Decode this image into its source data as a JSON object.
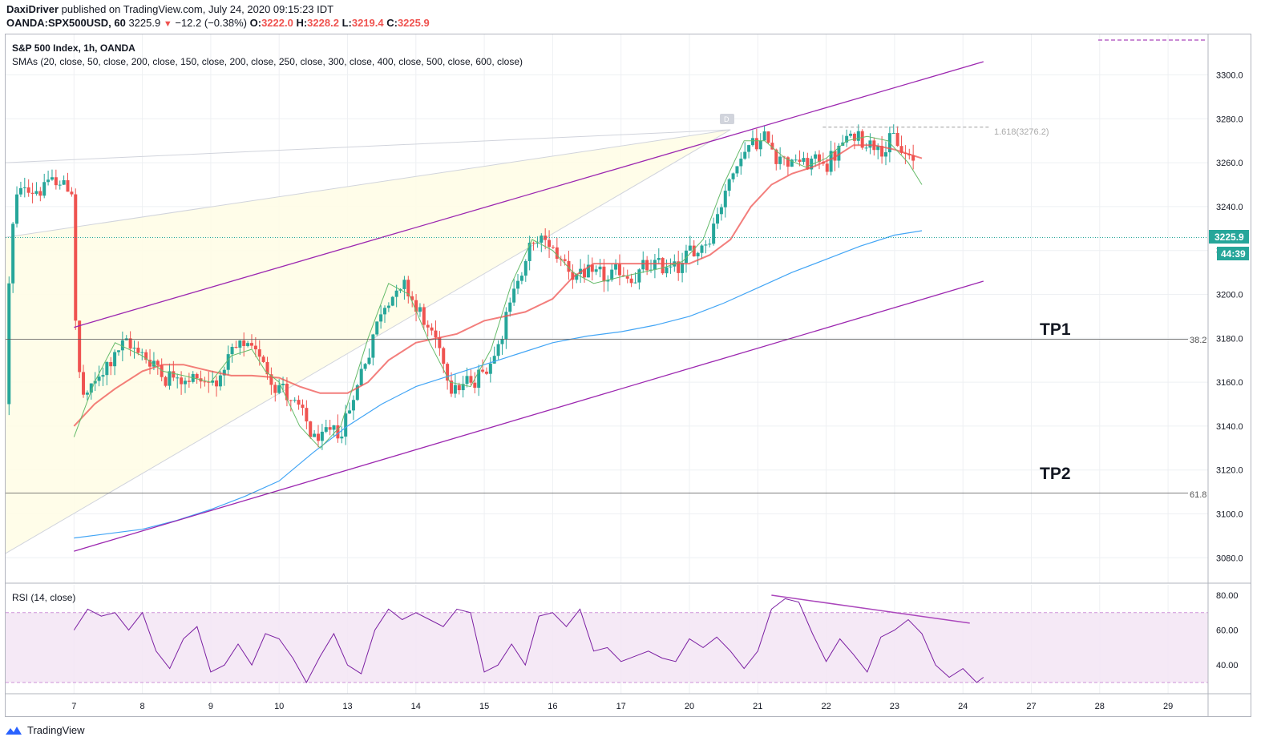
{
  "header": {
    "publisher": "DaxiDriver published on TradingView.com, July 24, 2020 09:15:23 IDT",
    "symbol": "OANDA:SPX500USD, 60",
    "last": "3225.9",
    "change_arrow": "▼",
    "change": "−12.2 (−0.38%)",
    "o_label": "O:",
    "o": "3222.0",
    "h_label": "H:",
    "h": "3228.2",
    "l_label": "L:",
    "l": "3219.4",
    "c_label": "C:",
    "c": "3225.9"
  },
  "legend": {
    "title": "S&P 500 Index, 1h, OANDA",
    "smas": "SMAs (20, close, 50, close, 200, close, 150, close, 200, close, 250, close, 300, close, 400, close, 500, close, 600, close)"
  },
  "rsi_legend": "RSI (14, close)",
  "footer": {
    "brand": "TradingView"
  },
  "colors": {
    "up": "#26a69a",
    "down": "#ef5350",
    "sma20": "#66bb6a",
    "sma50": "#ef5350",
    "sma200": "#42a5f5",
    "channel": "#9c27b0",
    "rsi": "#7b1fa2"
  },
  "chart_data": {
    "type": "candlestick",
    "ylim": [
      3070,
      3320
    ],
    "y_ticks": [
      "3300.0",
      "3280.0",
      "3260.0",
      "3240.0",
      "3220.0",
      "3200.0",
      "3180.0",
      "3160.0",
      "3140.0",
      "3120.0",
      "3100.0",
      "3080.0"
    ],
    "x_ticks": [
      "7",
      "8",
      "9",
      "10",
      "13",
      "14",
      "15",
      "16",
      "17",
      "20",
      "21",
      "22",
      "23",
      "24",
      "27",
      "28",
      "29"
    ],
    "price_label": "3225.9",
    "countdown_label": "44:39",
    "annotations": {
      "tp1": "TP1",
      "tp2": "TP2",
      "fib382": "38.2",
      "fib618": "61.8",
      "fib1618": "1.618(3276.2)",
      "point_d": "D"
    },
    "fib_levels": {
      "fib382": 3179.6,
      "fib618": 3109.5,
      "fib1618": 3276.2,
      "last": 3225.9
    },
    "channel": {
      "upper": [
        [
          0,
          3185
        ],
        [
          13.3,
          3306
        ]
      ],
      "lower": [
        [
          0,
          3083
        ],
        [
          13.3,
          3206
        ]
      ]
    },
    "sma20": [
      [
        0,
        3135
      ],
      [
        0.3,
        3160
      ],
      [
        0.6,
        3178
      ],
      [
        1,
        3172
      ],
      [
        1.3,
        3165
      ],
      [
        1.6,
        3163
      ],
      [
        2,
        3160
      ],
      [
        2.3,
        3172
      ],
      [
        2.6,
        3175
      ],
      [
        2.8,
        3165
      ],
      [
        3,
        3160
      ],
      [
        3.3,
        3140
      ],
      [
        3.6,
        3130
      ],
      [
        3.9,
        3140
      ],
      [
        4.3,
        3180
      ],
      [
        4.6,
        3205
      ],
      [
        4.9,
        3200
      ],
      [
        5.2,
        3178
      ],
      [
        5.5,
        3160
      ],
      [
        5.8,
        3158
      ],
      [
        6.1,
        3175
      ],
      [
        6.4,
        3205
      ],
      [
        6.7,
        3225
      ],
      [
        7,
        3220
      ],
      [
        7.3,
        3210
      ],
      [
        7.6,
        3205
      ],
      [
        8,
        3208
      ],
      [
        8.3,
        3210
      ],
      [
        8.6,
        3212
      ],
      [
        8.9,
        3215
      ],
      [
        9.2,
        3225
      ],
      [
        9.5,
        3250
      ],
      [
        9.8,
        3270
      ],
      [
        10.1,
        3270
      ],
      [
        10.4,
        3262
      ],
      [
        10.7,
        3258
      ],
      [
        11,
        3262
      ],
      [
        11.3,
        3270
      ],
      [
        11.6,
        3272
      ],
      [
        11.9,
        3270
      ],
      [
        12.2,
        3260
      ],
      [
        12.4,
        3250
      ]
    ],
    "sma50": [
      [
        0,
        3140
      ],
      [
        0.3,
        3150
      ],
      [
        0.6,
        3157
      ],
      [
        1,
        3165
      ],
      [
        1.3,
        3168
      ],
      [
        1.6,
        3168
      ],
      [
        2,
        3165
      ],
      [
        2.3,
        3163
      ],
      [
        2.6,
        3163
      ],
      [
        3,
        3162
      ],
      [
        3.3,
        3158
      ],
      [
        3.6,
        3155
      ],
      [
        4,
        3155
      ],
      [
        4.3,
        3160
      ],
      [
        4.6,
        3170
      ],
      [
        5,
        3178
      ],
      [
        5.3,
        3180
      ],
      [
        5.6,
        3182
      ],
      [
        6,
        3188
      ],
      [
        6.3,
        3190
      ],
      [
        6.6,
        3192
      ],
      [
        7,
        3198
      ],
      [
        7.3,
        3208
      ],
      [
        7.6,
        3214
      ],
      [
        8,
        3214
      ],
      [
        8.3,
        3214
      ],
      [
        8.6,
        3214
      ],
      [
        9,
        3214
      ],
      [
        9.3,
        3218
      ],
      [
        9.6,
        3225
      ],
      [
        9.9,
        3240
      ],
      [
        10.2,
        3250
      ],
      [
        10.5,
        3255
      ],
      [
        10.8,
        3258
      ],
      [
        11.1,
        3262
      ],
      [
        11.4,
        3268
      ],
      [
        11.7,
        3268
      ],
      [
        12,
        3266
      ],
      [
        12.4,
        3262
      ]
    ],
    "sma200": [
      [
        0,
        3089
      ],
      [
        0.5,
        3091
      ],
      [
        1,
        3093
      ],
      [
        1.5,
        3097
      ],
      [
        2,
        3102
      ],
      [
        2.5,
        3108
      ],
      [
        3,
        3115
      ],
      [
        3.5,
        3128
      ],
      [
        4,
        3140
      ],
      [
        4.5,
        3150
      ],
      [
        5,
        3158
      ],
      [
        5.5,
        3163
      ],
      [
        6,
        3168
      ],
      [
        6.5,
        3173
      ],
      [
        7,
        3178
      ],
      [
        7.5,
        3181
      ],
      [
        8,
        3183
      ],
      [
        8.5,
        3186
      ],
      [
        9,
        3190
      ],
      [
        9.5,
        3196
      ],
      [
        10,
        3203
      ],
      [
        10.5,
        3210
      ],
      [
        11,
        3216
      ],
      [
        11.5,
        3222
      ],
      [
        12,
        3227
      ],
      [
        12.4,
        3229
      ]
    ],
    "rsi": {
      "ylim": [
        28,
        84
      ],
      "ticks": [
        "80.00",
        "60.00",
        "40.00"
      ],
      "overbought": 70,
      "oversold": 30,
      "values": [
        [
          0,
          60
        ],
        [
          0.2,
          72
        ],
        [
          0.4,
          68
        ],
        [
          0.6,
          70
        ],
        [
          0.8,
          60
        ],
        [
          1,
          70
        ],
        [
          1.2,
          48
        ],
        [
          1.4,
          38
        ],
        [
          1.6,
          55
        ],
        [
          1.8,
          62
        ],
        [
          2,
          36
        ],
        [
          2.2,
          40
        ],
        [
          2.4,
          52
        ],
        [
          2.6,
          40
        ],
        [
          2.8,
          58
        ],
        [
          3,
          55
        ],
        [
          3.2,
          44
        ],
        [
          3.4,
          30
        ],
        [
          3.6,
          45
        ],
        [
          3.8,
          58
        ],
        [
          4,
          40
        ],
        [
          4.2,
          35
        ],
        [
          4.4,
          60
        ],
        [
          4.6,
          72
        ],
        [
          4.8,
          66
        ],
        [
          5,
          70
        ],
        [
          5.2,
          66
        ],
        [
          5.4,
          62
        ],
        [
          5.6,
          72
        ],
        [
          5.8,
          70
        ],
        [
          6,
          36
        ],
        [
          6.2,
          40
        ],
        [
          6.4,
          52
        ],
        [
          6.6,
          40
        ],
        [
          6.8,
          68
        ],
        [
          7,
          70
        ],
        [
          7.2,
          62
        ],
        [
          7.4,
          72
        ],
        [
          7.6,
          48
        ],
        [
          7.8,
          50
        ],
        [
          8,
          42
        ],
        [
          8.2,
          45
        ],
        [
          8.4,
          48
        ],
        [
          8.6,
          44
        ],
        [
          8.8,
          42
        ],
        [
          9,
          55
        ],
        [
          9.2,
          50
        ],
        [
          9.4,
          56
        ],
        [
          9.6,
          48
        ],
        [
          9.8,
          38
        ],
        [
          10,
          48
        ],
        [
          10.2,
          72
        ],
        [
          10.4,
          78
        ],
        [
          10.6,
          76
        ],
        [
          10.8,
          58
        ],
        [
          11,
          42
        ],
        [
          11.2,
          55
        ],
        [
          11.4,
          46
        ],
        [
          11.6,
          36
        ],
        [
          11.8,
          56
        ],
        [
          12,
          60
        ],
        [
          12.2,
          66
        ],
        [
          12.4,
          58
        ],
        [
          12.6,
          40
        ],
        [
          12.8,
          33
        ],
        [
          13,
          38
        ],
        [
          13.2,
          30
        ],
        [
          13.3,
          33
        ]
      ]
    }
  }
}
